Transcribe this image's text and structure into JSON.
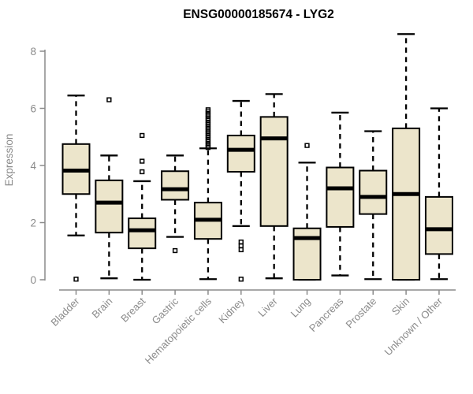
{
  "window": {
    "title": "ENSG00000185674 - LYG2"
  },
  "colors": {
    "background": "#ffffff",
    "box_fill": "#ece5cb",
    "box_stroke": "#000000",
    "median_stroke": "#000000",
    "axis": "#8a8a8a",
    "title_text": "#000000"
  },
  "chart_data": {
    "type": "boxplot",
    "title": "ENSG00000185674 - LYG2",
    "xlabel": "",
    "ylabel": "Expression",
    "ylim": [
      0,
      8.7
    ],
    "yticks": [
      0,
      2,
      4,
      6,
      8
    ],
    "grid": false,
    "legend": false,
    "categories": [
      "Bladder",
      "Brain",
      "Breast",
      "Gastric",
      "Hematopoietic cells",
      "Kidney",
      "Liver",
      "Lung",
      "Pancreas",
      "Prostate",
      "Skin",
      "Unknown / Other"
    ],
    "boxes": [
      {
        "category": "Bladder",
        "whisker_low": 1.55,
        "q1": 3.0,
        "median": 3.82,
        "q3": 4.75,
        "whisker_high": 6.45,
        "outliers": [
          0.02
        ]
      },
      {
        "category": "Brain",
        "whisker_low": 0.05,
        "q1": 1.65,
        "median": 2.7,
        "q3": 3.48,
        "whisker_high": 4.35,
        "outliers": [
          6.3
        ]
      },
      {
        "category": "Breast",
        "whisker_low": 0.0,
        "q1": 1.1,
        "median": 1.73,
        "q3": 2.15,
        "whisker_high": 3.45,
        "outliers": [
          5.05,
          4.15,
          3.78
        ]
      },
      {
        "category": "Gastric",
        "whisker_low": 1.5,
        "q1": 2.8,
        "median": 3.17,
        "q3": 3.8,
        "whisker_high": 4.35,
        "outliers": [
          1.02
        ]
      },
      {
        "category": "Hematopoietic cells",
        "whisker_low": 0.02,
        "q1": 1.43,
        "median": 2.1,
        "q3": 2.7,
        "whisker_high": 4.6,
        "outliers": [
          5.95,
          5.88,
          5.8,
          5.73,
          5.65,
          5.58,
          5.5,
          5.43,
          5.35,
          5.28,
          5.2,
          5.13,
          5.05,
          4.98,
          4.9,
          4.83,
          4.75,
          4.68,
          4.63
        ]
      },
      {
        "category": "Kidney",
        "whisker_low": 1.88,
        "q1": 3.78,
        "median": 4.55,
        "q3": 5.05,
        "whisker_high": 6.26,
        "outliers": [
          1.32,
          1.19,
          1.05,
          0.02
        ]
      },
      {
        "category": "Liver",
        "whisker_low": 0.05,
        "q1": 1.88,
        "median": 4.95,
        "q3": 5.7,
        "whisker_high": 6.5,
        "outliers": []
      },
      {
        "category": "Lung",
        "whisker_low": 0.0,
        "q1": 0.0,
        "median": 1.46,
        "q3": 1.8,
        "whisker_high": 4.1,
        "outliers": [
          4.7
        ]
      },
      {
        "category": "Pancreas",
        "whisker_low": 0.15,
        "q1": 1.85,
        "median": 3.2,
        "q3": 3.93,
        "whisker_high": 5.85,
        "outliers": []
      },
      {
        "category": "Prostate",
        "whisker_low": 0.02,
        "q1": 2.3,
        "median": 2.9,
        "q3": 3.82,
        "whisker_high": 5.2,
        "outliers": []
      },
      {
        "category": "Skin",
        "whisker_low": 0.0,
        "q1": 0.0,
        "median": 3.0,
        "q3": 5.3,
        "whisker_high": 8.6,
        "outliers": []
      },
      {
        "category": "Unknown / Other",
        "whisker_low": 0.02,
        "q1": 0.9,
        "median": 1.77,
        "q3": 2.9,
        "whisker_high": 6.0,
        "outliers": []
      }
    ]
  }
}
